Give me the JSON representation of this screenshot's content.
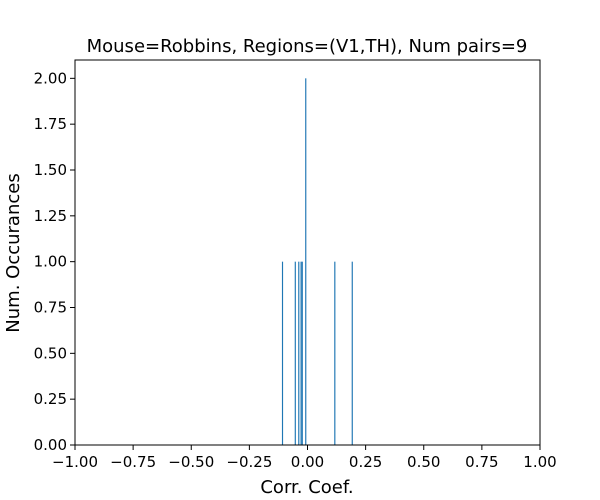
{
  "chart_data": {
    "type": "bar",
    "title": "Mouse=Robbins, Regions=(V1,TH), Num pairs=9",
    "xlabel": "Corr. Coef.",
    "ylabel": "Num. Occurances",
    "xlim": [
      -1.0,
      1.0
    ],
    "ylim": [
      0.0,
      2.1
    ],
    "x_ticks": [
      "−1.00",
      "−0.75",
      "−0.50",
      "−0.25",
      "0.00",
      "0.25",
      "0.50",
      "0.75",
      "1.00"
    ],
    "x_tick_values": [
      -1.0,
      -0.75,
      -0.5,
      -0.25,
      0.0,
      0.25,
      0.5,
      0.75,
      1.0
    ],
    "y_ticks": [
      "0.00",
      "0.25",
      "0.50",
      "0.75",
      "1.00",
      "1.25",
      "1.50",
      "1.75",
      "2.00"
    ],
    "y_tick_values": [
      0.0,
      0.25,
      0.5,
      0.75,
      1.0,
      1.25,
      1.5,
      1.75,
      2.0
    ],
    "bar_width": 0.005,
    "bars": [
      {
        "x": -0.11,
        "count": 1
      },
      {
        "x": -0.055,
        "count": 1
      },
      {
        "x": -0.04,
        "count": 1
      },
      {
        "x": -0.03,
        "count": 1
      },
      {
        "x": -0.025,
        "count": 1
      },
      {
        "x": -0.01,
        "count": 2
      },
      {
        "x": 0.115,
        "count": 1
      },
      {
        "x": 0.19,
        "count": 1
      }
    ],
    "bar_color": "#1f77b4",
    "grid": false,
    "legend": "none"
  }
}
